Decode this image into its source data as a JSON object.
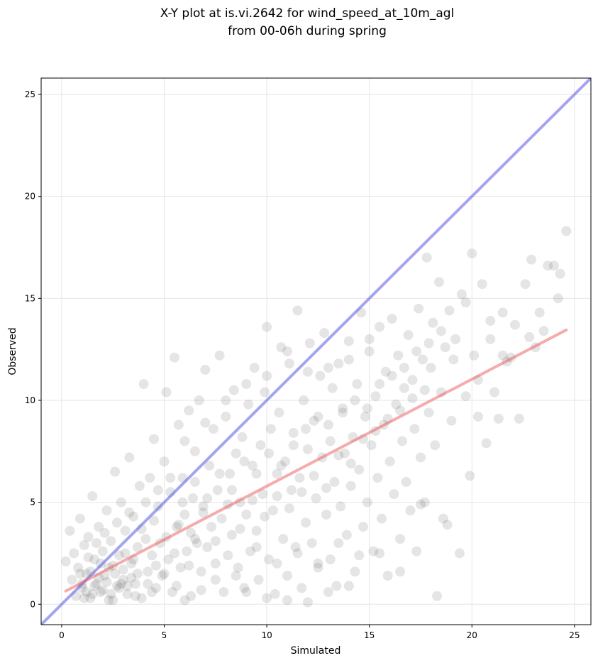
{
  "chart_data": {
    "type": "scatter",
    "title": "X-Y plot at is.vi.2642 for wind_speed_at_10m_agl",
    "subtitle": "from 00-06h during spring",
    "xlabel": "Simulated",
    "ylabel": "Observed",
    "xlim": [
      -1,
      25.8
    ],
    "ylim": [
      -1,
      25.8
    ],
    "xticks": [
      0,
      5,
      10,
      15,
      20,
      25
    ],
    "yticks": [
      0,
      5,
      10,
      15,
      20,
      25
    ],
    "grid": true,
    "legend": "none",
    "colors": {
      "points": "#333333",
      "identity_line": "#5a5ae6",
      "fit_line": "#eb5a5a"
    },
    "identity_line": {
      "slope": 1,
      "intercept": 0
    },
    "fit_line": {
      "x": [
        0.2,
        24.6
      ],
      "y": [
        0.65,
        13.45
      ]
    },
    "points": [
      [
        0.2,
        2.1
      ],
      [
        0.4,
        3.6
      ],
      [
        0.5,
        1.2
      ],
      [
        0.6,
        2.5
      ],
      [
        0.7,
        0.4
      ],
      [
        0.8,
        1.8
      ],
      [
        0.9,
        4.2
      ],
      [
        1.0,
        0.8
      ],
      [
        1.1,
        2.9
      ],
      [
        1.2,
        1.5
      ],
      [
        1.3,
        3.3
      ],
      [
        1.4,
        0.3
      ],
      [
        1.5,
        5.3
      ],
      [
        1.6,
        2.2
      ],
      [
        1.7,
        1.0
      ],
      [
        1.8,
        3.8
      ],
      [
        1.9,
        0.6
      ],
      [
        2.0,
        2.6
      ],
      [
        2.1,
        1.4
      ],
      [
        2.2,
        4.6
      ],
      [
        2.3,
        0.2
      ],
      [
        2.4,
        3.1
      ],
      [
        2.5,
        1.9
      ],
      [
        2.6,
        6.5
      ],
      [
        2.7,
        0.9
      ],
      [
        2.8,
        2.4
      ],
      [
        2.9,
        5.0
      ],
      [
        3.0,
        1.2
      ],
      [
        3.1,
        3.6
      ],
      [
        3.2,
        0.5
      ],
      [
        3.3,
        7.2
      ],
      [
        3.4,
        2.0
      ],
      [
        3.5,
        4.3
      ],
      [
        3.6,
        1.0
      ],
      [
        3.7,
        2.8
      ],
      [
        3.8,
        5.8
      ],
      [
        3.9,
        0.3
      ],
      [
        4.0,
        10.8
      ],
      [
        4.1,
        3.2
      ],
      [
        4.2,
        1.6
      ],
      [
        4.3,
        6.2
      ],
      [
        4.4,
        2.4
      ],
      [
        4.5,
        8.1
      ],
      [
        4.6,
        0.8
      ],
      [
        4.7,
        4.8
      ],
      [
        4.8,
        3.0
      ],
      [
        4.9,
        1.4
      ],
      [
        5.0,
        7.0
      ],
      [
        5.1,
        10.4
      ],
      [
        5.2,
        2.2
      ],
      [
        5.3,
        5.5
      ],
      [
        5.4,
        0.6
      ],
      [
        5.5,
        12.1
      ],
      [
        5.6,
        3.8
      ],
      [
        5.7,
        8.8
      ],
      [
        5.8,
        1.8
      ],
      [
        5.9,
        6.2
      ],
      [
        6.0,
        4.4
      ],
      [
        6.1,
        2.6
      ],
      [
        6.2,
        9.5
      ],
      [
        6.3,
        0.4
      ],
      [
        6.4,
        5.2
      ],
      [
        6.5,
        7.5
      ],
      [
        6.6,
        3.0
      ],
      [
        6.7,
        10.0
      ],
      [
        6.8,
        1.6
      ],
      [
        6.9,
        4.8
      ],
      [
        7.0,
        11.5
      ],
      [
        7.1,
        2.8
      ],
      [
        7.2,
        6.8
      ],
      [
        7.3,
        3.8
      ],
      [
        7.4,
        8.6
      ],
      [
        7.5,
        1.2
      ],
      [
        7.6,
        5.6
      ],
      [
        7.7,
        12.2
      ],
      [
        7.8,
        4.2
      ],
      [
        7.9,
        0.6
      ],
      [
        8.0,
        9.2
      ],
      [
        8.1,
        2.4
      ],
      [
        8.2,
        6.4
      ],
      [
        8.3,
        3.4
      ],
      [
        8.4,
        10.5
      ],
      [
        8.5,
        7.4
      ],
      [
        8.6,
        1.8
      ],
      [
        8.7,
        5.0
      ],
      [
        8.8,
        8.2
      ],
      [
        8.9,
        0.8
      ],
      [
        9.0,
        4.4
      ],
      [
        9.1,
        9.8
      ],
      [
        9.2,
        2.6
      ],
      [
        9.3,
        6.8
      ],
      [
        9.4,
        11.6
      ],
      [
        9.5,
        3.6
      ],
      [
        9.6,
        1.2
      ],
      [
        9.7,
        7.8
      ],
      [
        9.8,
        5.4
      ],
      [
        9.9,
        10.4
      ],
      [
        10.0,
        13.6
      ],
      [
        10.1,
        2.2
      ],
      [
        10.2,
        8.6
      ],
      [
        10.3,
        4.6
      ],
      [
        10.4,
        0.5
      ],
      [
        10.5,
        6.4
      ],
      [
        10.6,
        9.4
      ],
      [
        10.7,
        12.6
      ],
      [
        10.8,
        3.2
      ],
      [
        10.9,
        7.0
      ],
      [
        11.0,
        1.4
      ],
      [
        11.1,
        11.8
      ],
      [
        11.2,
        5.6
      ],
      [
        11.3,
        8.4
      ],
      [
        11.4,
        2.8
      ],
      [
        11.5,
        14.4
      ],
      [
        11.6,
        6.2
      ],
      [
        11.7,
        0.8
      ],
      [
        11.8,
        10.0
      ],
      [
        11.9,
        4.0
      ],
      [
        12.0,
        7.6
      ],
      [
        12.1,
        12.8
      ],
      [
        12.2,
        3.0
      ],
      [
        12.3,
        9.0
      ],
      [
        12.4,
        5.2
      ],
      [
        12.5,
        1.8
      ],
      [
        12.6,
        11.2
      ],
      [
        12.7,
        7.2
      ],
      [
        12.8,
        13.3
      ],
      [
        12.9,
        4.4
      ],
      [
        13.0,
        8.8
      ],
      [
        13.1,
        2.2
      ],
      [
        13.2,
        10.6
      ],
      [
        13.3,
        6.0
      ],
      [
        13.4,
        0.9
      ],
      [
        13.5,
        11.8
      ],
      [
        13.6,
        4.8
      ],
      [
        13.7,
        9.6
      ],
      [
        13.8,
        7.4
      ],
      [
        13.9,
        3.4
      ],
      [
        14.0,
        12.9
      ],
      [
        14.1,
        5.8
      ],
      [
        14.2,
        8.2
      ],
      [
        14.3,
        1.6
      ],
      [
        14.4,
        10.8
      ],
      [
        14.5,
        6.6
      ],
      [
        14.6,
        14.3
      ],
      [
        14.7,
        3.8
      ],
      [
        14.8,
        9.2
      ],
      [
        14.9,
        5.0
      ],
      [
        15.0,
        12.4
      ],
      [
        15.1,
        7.8
      ],
      [
        15.2,
        2.6
      ],
      [
        15.3,
        10.2
      ],
      [
        15.4,
        6.2
      ],
      [
        15.5,
        13.6
      ],
      [
        15.6,
        4.2
      ],
      [
        15.7,
        8.8
      ],
      [
        15.8,
        11.4
      ],
      [
        15.9,
        1.4
      ],
      [
        16.0,
        7.0
      ],
      [
        16.1,
        14.0
      ],
      [
        16.2,
        5.4
      ],
      [
        16.3,
        9.8
      ],
      [
        16.4,
        12.2
      ],
      [
        16.5,
        3.2
      ],
      [
        16.6,
        8.0
      ],
      [
        16.7,
        10.6
      ],
      [
        16.8,
        6.0
      ],
      [
        16.9,
        13.2
      ],
      [
        17.0,
        4.6
      ],
      [
        17.1,
        11.0
      ],
      [
        17.2,
        8.6
      ],
      [
        17.3,
        2.6
      ],
      [
        17.4,
        14.5
      ],
      [
        17.5,
        7.2
      ],
      [
        17.6,
        12.0
      ],
      [
        17.7,
        5.0
      ],
      [
        17.8,
        17.0
      ],
      [
        17.9,
        9.4
      ],
      [
        18.0,
        11.6
      ],
      [
        18.1,
        13.8
      ],
      [
        18.2,
        7.8
      ],
      [
        18.3,
        0.4
      ],
      [
        18.4,
        15.8
      ],
      [
        18.5,
        10.4
      ],
      [
        18.6,
        4.2
      ],
      [
        18.7,
        12.6
      ],
      [
        18.8,
        3.9
      ],
      [
        18.9,
        14.4
      ],
      [
        19.0,
        9.0
      ],
      [
        19.2,
        13.0
      ],
      [
        19.4,
        2.5
      ],
      [
        19.5,
        15.2
      ],
      [
        19.7,
        10.2
      ],
      [
        19.9,
        6.3
      ],
      [
        20.0,
        17.2
      ],
      [
        20.1,
        12.2
      ],
      [
        20.3,
        9.2
      ],
      [
        20.5,
        15.7
      ],
      [
        20.7,
        7.9
      ],
      [
        20.9,
        13.9
      ],
      [
        21.1,
        10.4
      ],
      [
        21.3,
        9.1
      ],
      [
        21.5,
        14.3
      ],
      [
        21.7,
        11.9
      ],
      [
        21.9,
        12.1
      ],
      [
        22.1,
        13.7
      ],
      [
        22.3,
        9.1
      ],
      [
        22.6,
        15.7
      ],
      [
        22.8,
        13.1
      ],
      [
        22.9,
        16.9
      ],
      [
        23.1,
        12.6
      ],
      [
        23.3,
        14.3
      ],
      [
        23.5,
        13.4
      ],
      [
        23.7,
        16.6
      ],
      [
        24.0,
        16.6
      ],
      [
        24.2,
        15.0
      ],
      [
        24.3,
        16.2
      ],
      [
        24.6,
        18.3
      ],
      [
        1.0,
        1.0
      ],
      [
        1.2,
        0.6
      ],
      [
        1.4,
        1.6
      ],
      [
        1.6,
        0.9
      ],
      [
        1.8,
        1.3
      ],
      [
        2.0,
        0.7
      ],
      [
        2.2,
        1.1
      ],
      [
        2.4,
        0.5
      ],
      [
        2.6,
        1.5
      ],
      [
        2.8,
        0.8
      ],
      [
        3.0,
        1.7
      ],
      [
        3.2,
        0.9
      ],
      [
        3.4,
        1.3
      ],
      [
        3.6,
        0.4
      ],
      [
        1.5,
        0.5
      ],
      [
        2.3,
        1.8
      ],
      [
        2.9,
        1.0
      ],
      [
        3.5,
        2.2
      ],
      [
        4.2,
        1.0
      ],
      [
        4.6,
        1.9
      ],
      [
        1.1,
        0.3
      ],
      [
        1.9,
        2.0
      ],
      [
        2.5,
        0.2
      ],
      [
        3.1,
        2.5
      ],
      [
        3.7,
        1.5
      ],
      [
        4.4,
        0.6
      ],
      [
        5.0,
        1.5
      ],
      [
        5.6,
        0.9
      ],
      [
        6.2,
        1.9
      ],
      [
        6.8,
        0.7
      ],
      [
        0.9,
        1.5
      ],
      [
        1.3,
        2.3
      ],
      [
        1.7,
        3.0
      ],
      [
        2.1,
        3.5
      ],
      [
        2.7,
        4.0
      ],
      [
        3.3,
        4.5
      ],
      [
        3.9,
        3.7
      ],
      [
        4.5,
        4.1
      ],
      [
        5.1,
        3.3
      ],
      [
        5.7,
        3.9
      ],
      [
        6.3,
        3.5
      ],
      [
        6.9,
        4.5
      ],
      [
        7.5,
        3.1
      ],
      [
        8.1,
        4.9
      ],
      [
        8.7,
        3.7
      ],
      [
        9.3,
        5.1
      ],
      [
        9.9,
        4.3
      ],
      [
        10.5,
        5.3
      ],
      [
        11.1,
        4.7
      ],
      [
        11.7,
        5.5
      ],
      [
        12.3,
        6.3
      ],
      [
        12.9,
        5.7
      ],
      [
        13.5,
        7.3
      ],
      [
        14.1,
        6.9
      ],
      [
        14.7,
        8.1
      ],
      [
        15.3,
        8.5
      ],
      [
        15.9,
        9.1
      ],
      [
        16.5,
        9.5
      ],
      [
        17.1,
        10.1
      ],
      [
        17.7,
        10.5
      ],
      [
        4.1,
        5.0
      ],
      [
        4.7,
        5.6
      ],
      [
        5.3,
        6.2
      ],
      [
        5.9,
        5.0
      ],
      [
        6.5,
        6.0
      ],
      [
        7.1,
        5.2
      ],
      [
        7.7,
        6.4
      ],
      [
        8.3,
        5.6
      ],
      [
        8.9,
        7.0
      ],
      [
        9.5,
        6.4
      ],
      [
        10.1,
        7.4
      ],
      [
        10.7,
        6.8
      ],
      [
        11.3,
        7.8
      ],
      [
        11.9,
        8.6
      ],
      [
        12.5,
        9.2
      ],
      [
        13.1,
        8.0
      ],
      [
        13.7,
        9.4
      ],
      [
        14.3,
        10.0
      ],
      [
        14.9,
        9.6
      ],
      [
        15.5,
        10.8
      ],
      [
        16.1,
        11.2
      ],
      [
        16.7,
        11.6
      ],
      [
        17.3,
        12.4
      ],
      [
        17.9,
        12.8
      ],
      [
        18.5,
        13.4
      ],
      [
        19.1,
        12.0
      ],
      [
        19.7,
        14.8
      ],
      [
        20.3,
        11.0
      ],
      [
        20.9,
        13.0
      ],
      [
        21.5,
        12.2
      ],
      [
        6.0,
        8.0
      ],
      [
        7.0,
        8.9
      ],
      [
        8.0,
        10.0
      ],
      [
        9.0,
        10.8
      ],
      [
        10.0,
        11.2
      ],
      [
        11.0,
        12.4
      ],
      [
        12.0,
        11.4
      ],
      [
        13.0,
        11.6
      ],
      [
        14.0,
        12.0
      ],
      [
        15.0,
        13.0
      ],
      [
        5.5,
        2.5
      ],
      [
        6.5,
        3.2
      ],
      [
        7.5,
        2.0
      ],
      [
        8.5,
        1.4
      ],
      [
        9.5,
        2.8
      ],
      [
        10.5,
        2.0
      ],
      [
        11.5,
        2.5
      ],
      [
        12.5,
        2.0
      ],
      [
        13.5,
        3.0
      ],
      [
        14.5,
        2.4
      ],
      [
        15.5,
        2.5
      ],
      [
        16.5,
        1.6
      ],
      [
        17.5,
        4.9
      ],
      [
        9.0,
        0.6
      ],
      [
        10.0,
        0.3
      ],
      [
        11.0,
        0.2
      ],
      [
        12.0,
        0.1
      ],
      [
        13.0,
        0.6
      ],
      [
        14.0,
        0.9
      ],
      [
        6.0,
        0.2
      ]
    ]
  }
}
